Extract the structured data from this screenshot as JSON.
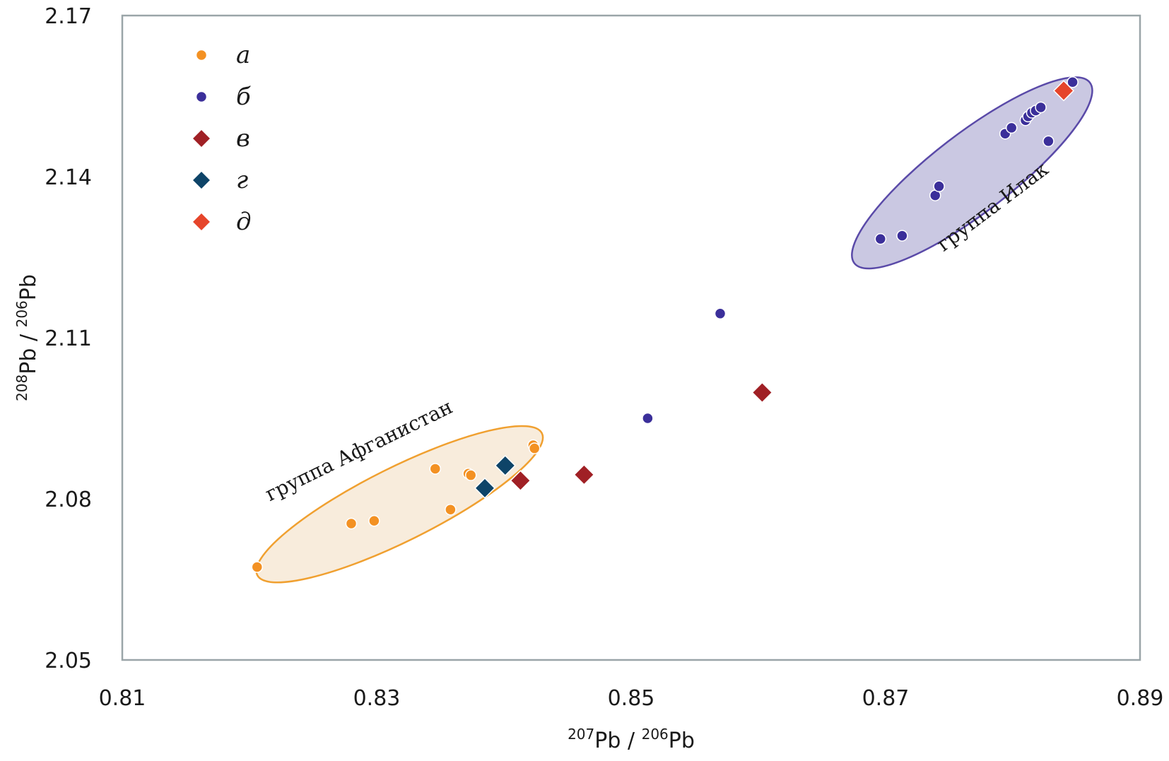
{
  "chart_data": {
    "type": "scatter",
    "title": "",
    "xlabel": {
      "iso_a": "207",
      "a": "Pb",
      "sep": " / ",
      "iso_b": "206",
      "b": "Pb"
    },
    "ylabel": {
      "iso_a": "208",
      "a": "Pb",
      "sep": " / ",
      "iso_b": "206",
      "b": "Pb"
    },
    "xlim": [
      0.81,
      0.89
    ],
    "ylim": [
      2.05,
      2.17
    ],
    "xticks": [
      "0.81",
      "0.83",
      "0.85",
      "0.87",
      "0.89"
    ],
    "yticks": [
      "2.05",
      "2.08",
      "2.11",
      "2.14",
      "2.17"
    ],
    "grid": false,
    "legend_position": "top-left",
    "series": [
      {
        "name": "а",
        "marker": "circle",
        "color": "#f39123",
        "points": [
          [
            0.8206,
            2.0673
          ],
          [
            0.828,
            2.0754
          ],
          [
            0.8298,
            2.0759
          ],
          [
            0.8346,
            2.0856
          ],
          [
            0.8358,
            2.078
          ],
          [
            0.8372,
            2.0847
          ],
          [
            0.8374,
            2.0844
          ],
          [
            0.8423,
            2.09
          ],
          [
            0.8424,
            2.0894
          ]
        ]
      },
      {
        "name": "б",
        "marker": "circle",
        "color": "#3b2f9a",
        "points": [
          [
            0.8513,
            2.095
          ],
          [
            0.857,
            2.1145
          ],
          [
            0.8696,
            2.1284
          ],
          [
            0.8713,
            2.129
          ],
          [
            0.8739,
            2.1365
          ],
          [
            0.8742,
            2.1382
          ],
          [
            0.8794,
            2.148
          ],
          [
            0.8799,
            2.1491
          ],
          [
            0.881,
            2.1505
          ],
          [
            0.8812,
            2.1512
          ],
          [
            0.8815,
            2.1519
          ],
          [
            0.8818,
            2.1523
          ],
          [
            0.8822,
            2.1529
          ],
          [
            0.8828,
            2.1466
          ],
          [
            0.8847,
            2.1576
          ]
        ]
      },
      {
        "name": "в",
        "marker": "diamond",
        "color": "#a02025",
        "points": [
          [
            0.8413,
            2.0834
          ],
          [
            0.8463,
            2.0845
          ],
          [
            0.8603,
            2.0998
          ]
        ]
      },
      {
        "name": "г",
        "marker": "diamond",
        "color": "#0e4468",
        "points": [
          [
            0.8385,
            2.082
          ],
          [
            0.8401,
            2.0862
          ]
        ]
      },
      {
        "name": "д",
        "marker": "diamond",
        "color": "#e6452b",
        "points": [
          [
            0.884,
            2.156
          ]
        ]
      }
    ],
    "annotations": [
      {
        "text": "группа Афганистан",
        "ellipse": {
          "cx": 0.8318,
          "cy": 2.079,
          "fill": "#f8ecdc",
          "stroke": "#f0a030"
        }
      },
      {
        "text": "группа Илак",
        "ellipse": {
          "cx": 0.8768,
          "cy": 2.1407,
          "fill": "#cac8e2",
          "stroke": "#5a4aa8"
        }
      }
    ]
  }
}
